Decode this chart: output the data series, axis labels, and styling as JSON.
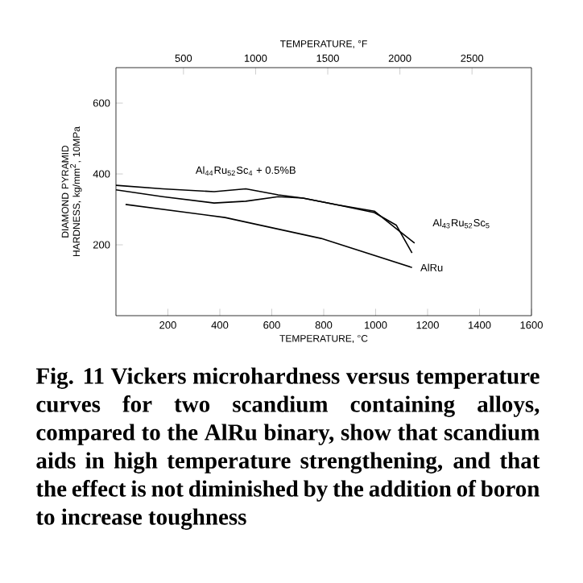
{
  "chart_data": {
    "type": "line",
    "xlabel": "TEMPERATURE, °C",
    "x2label": "TEMPERATURE, °F",
    "ylabel": "DIAMOND PYRAMID HARDNESS, kg/mm$^{2}$, 10MPa",
    "xlim": [
      0,
      1600
    ],
    "xticks": [
      200,
      400,
      600,
      800,
      1000,
      1200,
      1400,
      1600
    ],
    "x2lim": [
      32,
      2912
    ],
    "x2ticks": [
      500,
      1000,
      1500,
      2000,
      2500
    ],
    "ylim": [
      0,
      700
    ],
    "yticks": [
      200,
      400,
      600
    ],
    "grid": false,
    "marker": "none",
    "line_style": "solid",
    "series": [
      {
        "name": "Al$_{44}$Ru$_{52}$Sc$_{4}$ + 0.5%B",
        "color": "#000000",
        "x": [
          0,
          180,
          378,
          500,
          625,
          720,
          850,
          995,
          1080,
          1140
        ],
        "values": [
          368,
          358,
          350,
          358,
          341,
          332,
          313,
          291,
          255,
          177
        ]
      },
      {
        "name": "Al$_{43}$Ru$_{52}$Sc$_{5}$",
        "color": "#000000",
        "x": [
          0,
          180,
          378,
          500,
          625,
          720,
          850,
          995,
          1080,
          1150
        ],
        "values": [
          355,
          336,
          318,
          323,
          336,
          332,
          313,
          295,
          245,
          205
        ]
      },
      {
        "name": "AlRu",
        "color": "#000000",
        "x": [
          37,
          420,
          790,
          1140
        ],
        "values": [
          314,
          277,
          218,
          136
        ]
      }
    ],
    "annotations": [
      "Fig. 11 Vickers microhardness versus temperature curves for two scandium containing alloys, compared to the AlRu binary, show that scandium aids in high temperature strengthening, and that the effect is not diminished by the addition of boron to increase toughness"
    ]
  }
}
